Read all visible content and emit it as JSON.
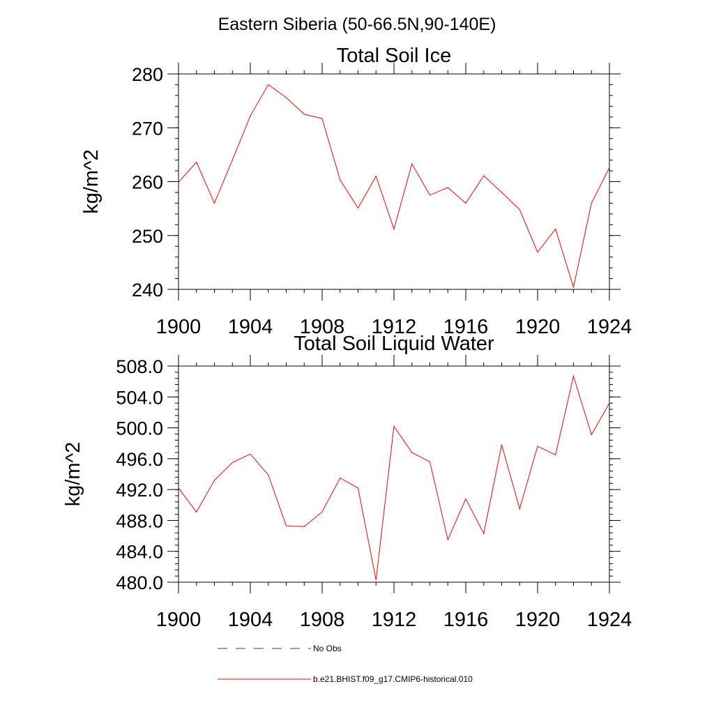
{
  "page_title": "Eastern Siberia (50-66.5N,90-140E)",
  "colors": {
    "series": "#ff0000",
    "no_obs": "#3a3a6a",
    "axis": "#000000"
  },
  "legend": [
    {
      "label": "No Obs",
      "style": "dashed",
      "color": "#3a3a6a"
    },
    {
      "label": "b.e21.BHIST.f09_g17.CMIP6-historical.010",
      "style": "solid",
      "color": "#ff0000"
    }
  ],
  "chart_data": [
    {
      "type": "line",
      "title": "Total Soil Ice",
      "xlabel": "",
      "ylabel": "kg/m^2",
      "xlim": [
        1900,
        1924
      ],
      "ylim": [
        240,
        280
      ],
      "xticks": [
        "1900",
        "1904",
        "1908",
        "1912",
        "1916",
        "1920",
        "1924"
      ],
      "yticks": [
        "240",
        "250",
        "260",
        "270",
        "280"
      ],
      "x": [
        1900,
        1901,
        1902,
        1903,
        1904,
        1905,
        1906,
        1907,
        1908,
        1909,
        1910,
        1911,
        1912,
        1913,
        1914,
        1915,
        1916,
        1917,
        1918,
        1919,
        1920,
        1921,
        1922,
        1923,
        1924
      ],
      "series": [
        {
          "name": "b.e21.BHIST.f09_g17.CMIP6-historical.010",
          "values": [
            259.9,
            263.6,
            256.0,
            264.0,
            272.2,
            278.0,
            275.6,
            272.5,
            271.7,
            260.3,
            255.1,
            261.0,
            251.2,
            263.3,
            257.5,
            258.9,
            256.0,
            261.1,
            258.0,
            254.8,
            246.9,
            251.2,
            240.4,
            256.0,
            262.6
          ]
        }
      ]
    },
    {
      "type": "line",
      "title": "Total Soil Liquid Water",
      "xlabel": "",
      "ylabel": "kg/m^2",
      "xlim": [
        1900,
        1924
      ],
      "ylim": [
        480,
        508
      ],
      "xticks": [
        "1900",
        "1904",
        "1908",
        "1912",
        "1916",
        "1920",
        "1924"
      ],
      "yticks": [
        "480.0",
        "484.0",
        "488.0",
        "492.0",
        "496.0",
        "500.0",
        "504.0",
        "508.0"
      ],
      "x": [
        1900,
        1901,
        1902,
        1903,
        1904,
        1905,
        1906,
        1907,
        1908,
        1909,
        1910,
        1911,
        1912,
        1913,
        1914,
        1915,
        1916,
        1917,
        1918,
        1919,
        1920,
        1921,
        1922,
        1923,
        1924
      ],
      "series": [
        {
          "name": "b.e21.BHIST.f09_g17.CMIP6-historical.010",
          "values": [
            492.2,
            489.1,
            493.2,
            495.5,
            496.6,
            493.9,
            487.3,
            487.2,
            489.1,
            493.5,
            492.2,
            480.3,
            500.2,
            496.8,
            495.6,
            485.5,
            490.8,
            486.3,
            497.8,
            489.5,
            497.6,
            496.5,
            506.7,
            499.1,
            503.2
          ]
        }
      ]
    }
  ]
}
